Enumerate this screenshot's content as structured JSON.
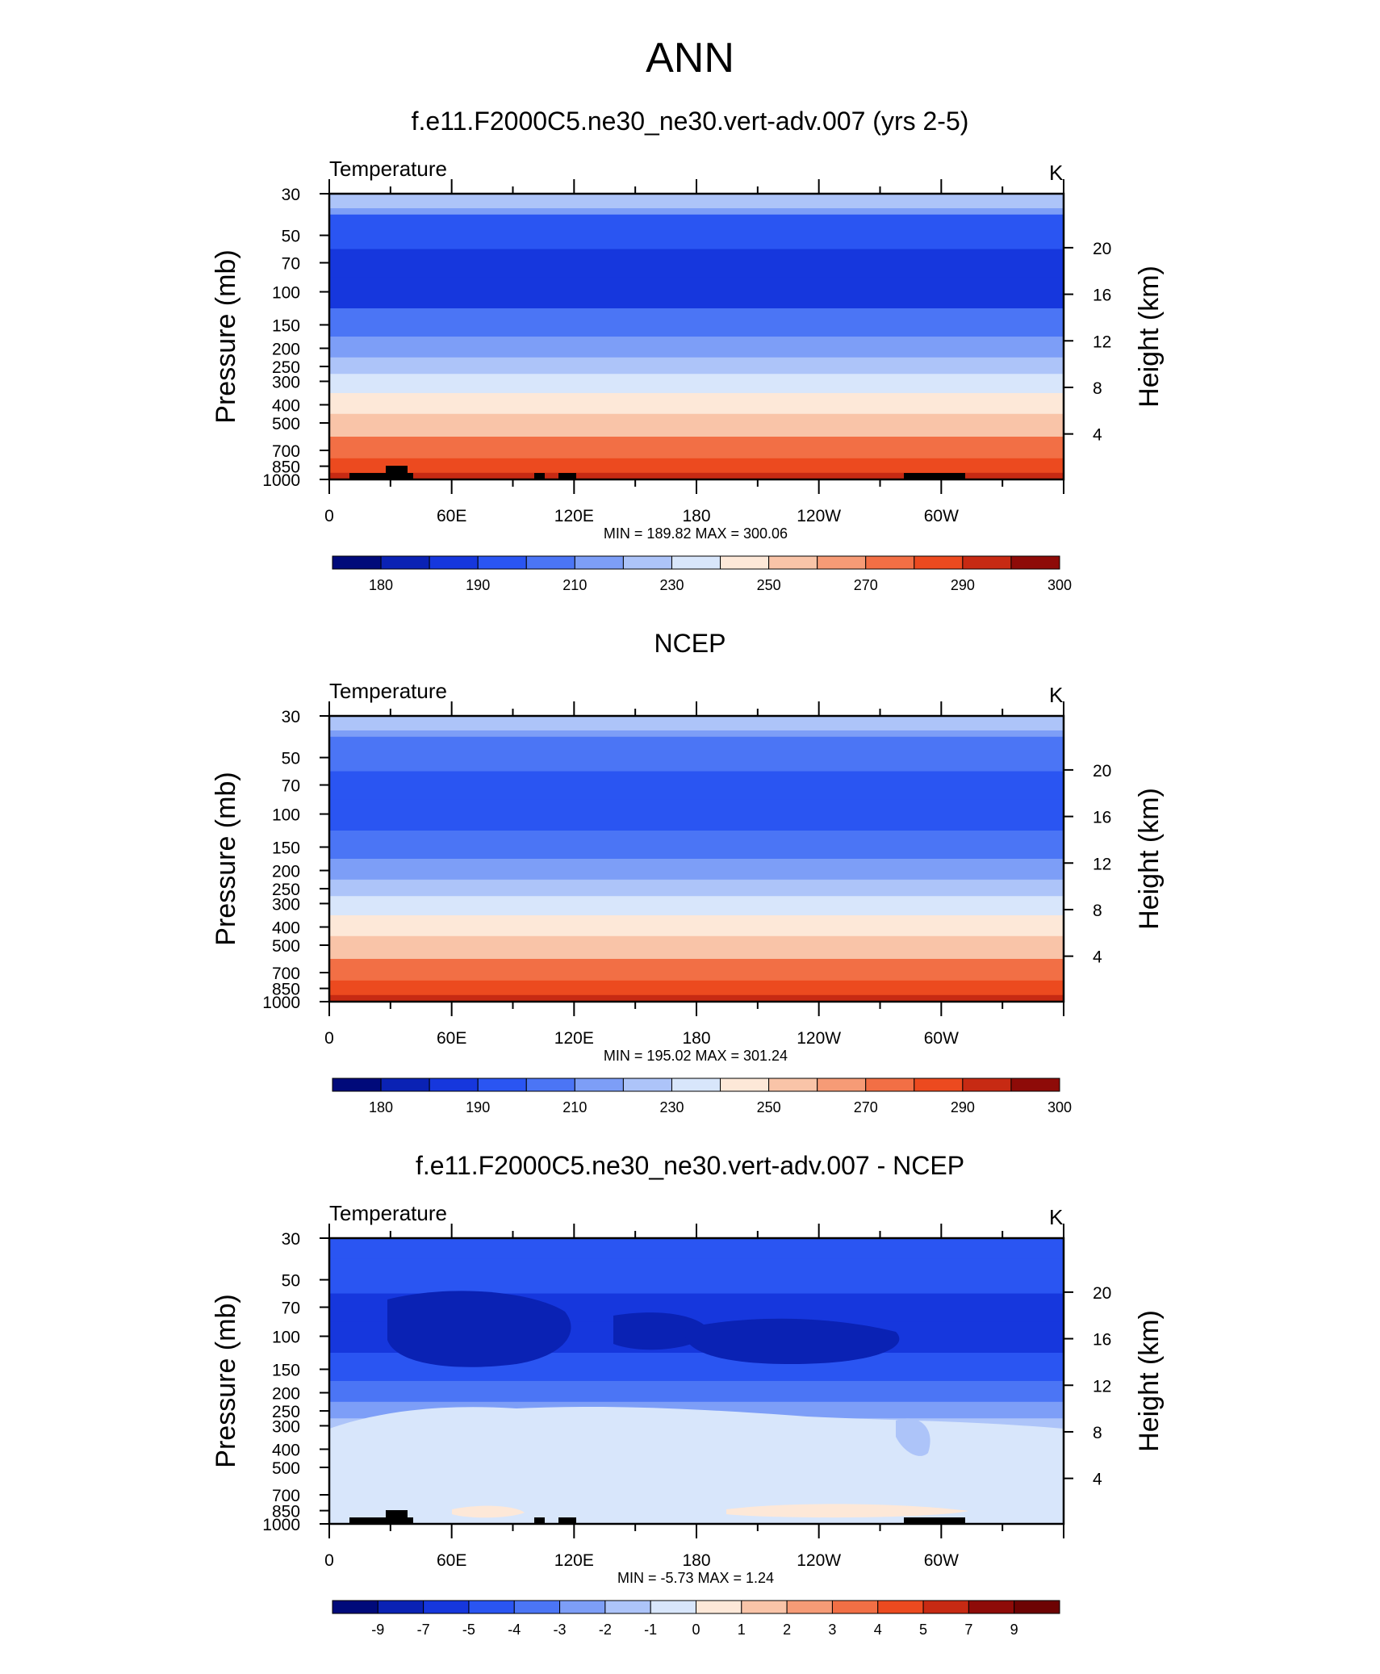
{
  "page": {
    "title": "ANN"
  },
  "chart_data": [
    {
      "type": "heatmap",
      "title": "f.e11.F2000C5.ne30_ne30.vert-adv.007 (yrs 2-5)",
      "left_string": "Temperature",
      "right_string": "K",
      "ylabel": "Pressure (mb)",
      "y2label": "Height (km)",
      "y_ticks": [
        "30",
        "50",
        "70",
        "100",
        "150",
        "200",
        "250",
        "300",
        "400",
        "500",
        "700",
        "850",
        "1000"
      ],
      "y2_ticks": [
        "20",
        "16",
        "12",
        "8",
        "4"
      ],
      "x_ticks": [
        "0",
        "60E",
        "120E",
        "180",
        "120W",
        "60W"
      ],
      "stats": "MIN = 189.82  MAX = 300.06",
      "colorbar_labels": [
        "180",
        "190",
        "210",
        "230",
        "250",
        "270",
        "290",
        "300"
      ],
      "colorbar_colors": [
        "#000a7a",
        "#0a22b4",
        "#1637dd",
        "#2a55f2",
        "#4b75f5",
        "#7d9ef7",
        "#adc4f9",
        "#d8e6fb",
        "#fde8d8",
        "#f9c4a8",
        "#f69b76",
        "#f26f45",
        "#ec4a1f",
        "#c72a13",
        "#8e0b08"
      ],
      "levels": [
        {
          "p": 30,
          "band": 5
        },
        {
          "p": 50,
          "band": 3
        },
        {
          "p": 70,
          "band": 2
        },
        {
          "p": 100,
          "band": 2
        },
        {
          "p": 150,
          "band": 4
        },
        {
          "p": 200,
          "band": 5
        },
        {
          "p": 250,
          "band": 6
        },
        {
          "p": 300,
          "band": 7
        },
        {
          "p": 400,
          "band": 8
        },
        {
          "p": 500,
          "band": 9
        },
        {
          "p": 700,
          "band": 11
        },
        {
          "p": 850,
          "band": 12
        },
        {
          "p": 1000,
          "band": 13
        }
      ]
    },
    {
      "type": "heatmap",
      "title": "NCEP",
      "left_string": "Temperature",
      "right_string": "K",
      "ylabel": "Pressure (mb)",
      "y2label": "Height (km)",
      "y_ticks": [
        "30",
        "50",
        "70",
        "100",
        "150",
        "200",
        "250",
        "300",
        "400",
        "500",
        "700",
        "850",
        "1000"
      ],
      "y2_ticks": [
        "20",
        "16",
        "12",
        "8",
        "4"
      ],
      "x_ticks": [
        "0",
        "60E",
        "120E",
        "180",
        "120W",
        "60W"
      ],
      "stats": "MIN = 195.02  MAX = 301.24",
      "colorbar_labels": [
        "180",
        "190",
        "210",
        "230",
        "250",
        "270",
        "290",
        "300"
      ],
      "colorbar_colors": [
        "#000a7a",
        "#0a22b4",
        "#1637dd",
        "#2a55f2",
        "#4b75f5",
        "#7d9ef7",
        "#adc4f9",
        "#d8e6fb",
        "#fde8d8",
        "#f9c4a8",
        "#f69b76",
        "#f26f45",
        "#ec4a1f",
        "#c72a13",
        "#8e0b08"
      ],
      "levels": [
        {
          "p": 30,
          "band": 5
        },
        {
          "p": 50,
          "band": 4
        },
        {
          "p": 70,
          "band": 3
        },
        {
          "p": 100,
          "band": 3
        },
        {
          "p": 150,
          "band": 4
        },
        {
          "p": 200,
          "band": 5
        },
        {
          "p": 250,
          "band": 6
        },
        {
          "p": 300,
          "band": 7
        },
        {
          "p": 400,
          "band": 8
        },
        {
          "p": 500,
          "band": 9
        },
        {
          "p": 700,
          "band": 11
        },
        {
          "p": 850,
          "band": 12
        },
        {
          "p": 1000,
          "band": 13
        }
      ]
    },
    {
      "type": "heatmap",
      "title": "f.e11.F2000C5.ne30_ne30.vert-adv.007 - NCEP",
      "left_string": "Temperature",
      "right_string": "K",
      "ylabel": "Pressure (mb)",
      "y2label": "Height (km)",
      "y_ticks": [
        "30",
        "50",
        "70",
        "100",
        "150",
        "200",
        "250",
        "300",
        "400",
        "500",
        "700",
        "850",
        "1000"
      ],
      "y2_ticks": [
        "20",
        "16",
        "12",
        "8",
        "4"
      ],
      "x_ticks": [
        "0",
        "60E",
        "120E",
        "180",
        "120W",
        "60W"
      ],
      "stats": "MIN =  -5.73  MAX =   1.24",
      "colorbar_labels": [
        "-9",
        "-7",
        "-5",
        "-4",
        "-3",
        "-2",
        "-1",
        "0",
        "1",
        "2",
        "3",
        "4",
        "5",
        "7",
        "9"
      ],
      "colorbar_colors": [
        "#000a7a",
        "#0a22b4",
        "#1637dd",
        "#2a55f2",
        "#4b75f5",
        "#7d9ef7",
        "#adc4f9",
        "#d8e6fb",
        "#fde8d8",
        "#f9c4a8",
        "#f69b76",
        "#f26f45",
        "#ec4a1f",
        "#c72a13",
        "#8e0b08",
        "#6d0303"
      ],
      "levels": [
        {
          "p": 30,
          "band": 3
        },
        {
          "p": 50,
          "band": 3
        },
        {
          "p": 70,
          "band": 2
        },
        {
          "p": 100,
          "band": 2
        },
        {
          "p": 150,
          "band": 3
        },
        {
          "p": 200,
          "band": 4
        },
        {
          "p": 250,
          "band": 5
        },
        {
          "p": 300,
          "band": 6
        },
        {
          "p": 400,
          "band": 7
        },
        {
          "p": 500,
          "band": 7
        },
        {
          "p": 700,
          "band": 7
        },
        {
          "p": 850,
          "band": 7
        },
        {
          "p": 1000,
          "band": 7
        }
      ]
    }
  ]
}
